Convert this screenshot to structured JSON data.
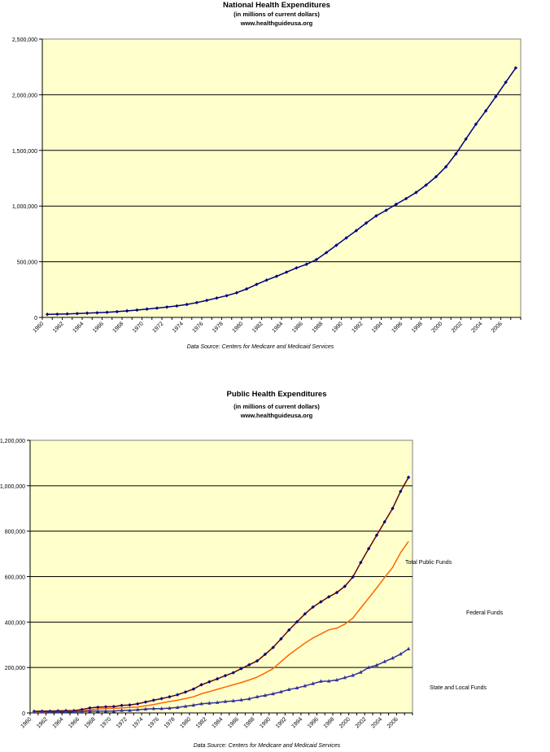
{
  "colors": {
    "plot_bg": "#FFFFCC",
    "grid": "#000000",
    "national_line": "#000080",
    "total_line": "#660000",
    "total_marker": "#000080",
    "federal_line": "#FF6600",
    "state_line": "#333399"
  },
  "chart_data": [
    {
      "type": "line",
      "title": "National Health Expenditures",
      "subtitle": "(in millions of current dollars)",
      "website": "www.healthguideusa.org",
      "source": "Data Source: Centers for Medicare and Medicaid Services",
      "xlabel": "",
      "ylabel": "",
      "ylim": [
        0,
        2500000
      ],
      "yticks": [
        "0",
        "500,000",
        "1,000,000",
        "1,500,000",
        "2,000,000",
        "2,500,000"
      ],
      "xtick_labels": [
        "1960",
        "1962",
        "1964",
        "1966",
        "1968",
        "1970",
        "1972",
        "1974",
        "1976",
        "1978",
        "1980",
        "1982",
        "1984",
        "1986",
        "1988",
        "1990",
        "1992",
        "1994",
        "1996",
        "1998",
        "2000",
        "2002",
        "2004",
        "2006"
      ],
      "grid": true,
      "x": [
        1960,
        1961,
        1962,
        1963,
        1964,
        1965,
        1966,
        1967,
        1968,
        1969,
        1970,
        1971,
        1972,
        1973,
        1974,
        1975,
        1976,
        1977,
        1978,
        1979,
        1980,
        1981,
        1982,
        1983,
        1984,
        1985,
        1986,
        1987,
        1988,
        1989,
        1990,
        1991,
        1992,
        1993,
        1994,
        1995,
        1996,
        1997,
        1998,
        1999,
        2000,
        2001,
        2002,
        2003,
        2004,
        2005,
        2006,
        2007
      ],
      "series": [
        {
          "name": "National Health Expenditures",
          "values": [
            27400,
            29100,
            31600,
            34400,
            38400,
            41900,
            46100,
            51600,
            58500,
            65900,
            74900,
            83300,
            93000,
            102800,
            116500,
            133300,
            152700,
            173900,
            195300,
            221500,
            255800,
            296700,
            334700,
            369000,
            406500,
            444600,
            476900,
            519100,
            581600,
            647500,
            714000,
            779500,
            848000,
            912000,
            962000,
            1016000,
            1067000,
            1122000,
            1188000,
            1263000,
            1353000,
            1469000,
            1602000,
            1735000,
            1855000,
            1983000,
            2112000,
            2241000
          ]
        }
      ]
    },
    {
      "type": "line",
      "title": "Public Health Expenditures",
      "subtitle": "(in millions of current dollars)",
      "website": "www.healthguideusa.org",
      "source": "Data Source: Centers for Medicare and Medicaid Services",
      "xlabel": "",
      "ylabel": "",
      "ylim": [
        0,
        1200000
      ],
      "yticks": [
        "0",
        "200,000",
        "400,000",
        "600,000",
        "800,000",
        "1,000,000",
        "1,200,000"
      ],
      "xtick_labels": [
        "1960",
        "1962",
        "1964",
        "1966",
        "1968",
        "1970",
        "1972",
        "1974",
        "1976",
        "1978",
        "1980",
        "1982",
        "1984",
        "1986",
        "1988",
        "1990",
        "1992",
        "1994",
        "1996",
        "1998",
        "2000",
        "2002",
        "2004",
        "2006"
      ],
      "grid": true,
      "x": [
        1960,
        1961,
        1962,
        1963,
        1964,
        1965,
        1966,
        1967,
        1968,
        1969,
        1970,
        1971,
        1972,
        1973,
        1974,
        1975,
        1976,
        1977,
        1978,
        1979,
        1980,
        1981,
        1982,
        1983,
        1984,
        1985,
        1986,
        1987,
        1988,
        1989,
        1990,
        1991,
        1992,
        1993,
        1994,
        1995,
        1996,
        1997,
        1998,
        1999,
        2000,
        2001,
        2002,
        2003,
        2004,
        2005,
        2006,
        2007
      ],
      "series": [
        {
          "name": "Total Public Funds",
          "values": [
            7000,
            8000,
            8000,
            9000,
            10000,
            10000,
            15000,
            22000,
            25000,
            27000,
            28000,
            33000,
            35000,
            40000,
            48000,
            56000,
            63000,
            71000,
            80000,
            92000,
            105000,
            124000,
            137000,
            150000,
            164000,
            177000,
            195000,
            212000,
            229000,
            258000,
            288000,
            326000,
            365000,
            401000,
            436000,
            466000,
            489000,
            511000,
            530000,
            557000,
            598000,
            662000,
            723000,
            782000,
            841000,
            900000,
            975000,
            1037000
          ]
        },
        {
          "name": "Federal Funds",
          "values": [
            3000,
            3000,
            4000,
            4000,
            5000,
            5000,
            9000,
            14000,
            17000,
            19000,
            20000,
            22000,
            24000,
            26000,
            31000,
            37000,
            44000,
            50000,
            56000,
            63000,
            71000,
            84000,
            94000,
            104000,
            114000,
            124000,
            134000,
            145000,
            158000,
            176000,
            195000,
            226000,
            256000,
            282000,
            307000,
            330000,
            348000,
            366000,
            373000,
            391000,
            417000,
            462000,
            505000,
            550000,
            596000,
            640000,
            705000,
            755000
          ]
        },
        {
          "name": "State and Local Funds",
          "values": [
            4000,
            5000,
            4000,
            5000,
            5000,
            5000,
            6000,
            8000,
            8000,
            8000,
            8000,
            11000,
            11000,
            14000,
            17000,
            19000,
            19000,
            21000,
            24000,
            29000,
            34000,
            40000,
            43000,
            46000,
            50000,
            53000,
            57000,
            62000,
            71000,
            77000,
            84000,
            93000,
            103000,
            110000,
            119000,
            129000,
            139000,
            140000,
            145000,
            155000,
            165000,
            179000,
            200000,
            210000,
            226000,
            241000,
            259000,
            282000
          ]
        }
      ]
    }
  ]
}
